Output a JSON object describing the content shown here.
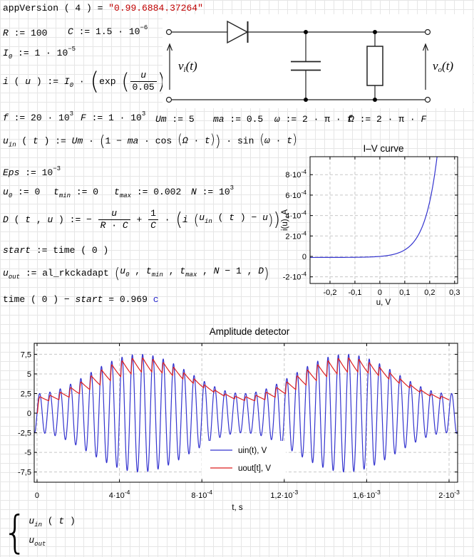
{
  "formulas": {
    "appversion": [
      [
        "t",
        "appVersion"
      ],
      [
        "o",
        " ( "
      ],
      [
        "t",
        "4"
      ],
      [
        "o",
        " ) = "
      ],
      [
        "s",
        "\"0.99.6884.37264\""
      ]
    ],
    "def_R": [
      [
        "v",
        "R"
      ],
      [
        "o",
        " := "
      ],
      [
        "t",
        "100"
      ]
    ],
    "def_C": [
      [
        "v",
        "C"
      ],
      [
        "o",
        " := "
      ],
      [
        "t",
        "1.5"
      ],
      [
        "o",
        " · "
      ],
      [
        "t",
        "10"
      ],
      [
        "sup",
        "−6"
      ]
    ],
    "def_I0": [
      [
        "v",
        "I"
      ],
      [
        "sub",
        "0"
      ],
      [
        "o",
        " := "
      ],
      [
        "t",
        "1"
      ],
      [
        "o",
        " · "
      ],
      [
        "t",
        "10"
      ],
      [
        "sup",
        "−5"
      ]
    ],
    "def_i": [
      [
        "v",
        "i"
      ],
      [
        "o",
        " ( "
      ],
      [
        "v",
        "u"
      ],
      [
        "o",
        " ) := "
      ],
      [
        "v",
        "I"
      ],
      [
        "sub",
        "0"
      ],
      [
        "o",
        " · "
      ],
      [
        "big",
        [
          [
            "t",
            "exp"
          ],
          [
            "o",
            " "
          ],
          [
            "big",
            [
              [
                "frac",
                [
                  [
                    "v",
                    "u"
                  ]
                ],
                [
                  [
                    "t",
                    "0.05"
                  ]
                ]
              ]
            ],
            2.2
          ],
          [
            "o",
            " − "
          ],
          [
            "t",
            "1"
          ]
        ],
        2.5
      ]
    ],
    "def_f": [
      [
        "v",
        "f"
      ],
      [
        "o",
        " := "
      ],
      [
        "t",
        "20"
      ],
      [
        "o",
        " · "
      ],
      [
        "t",
        "10"
      ],
      [
        "sup",
        "3"
      ]
    ],
    "def_F": [
      [
        "v",
        "F"
      ],
      [
        "o",
        " := "
      ],
      [
        "t",
        "1"
      ],
      [
        "o",
        " · "
      ],
      [
        "t",
        "10"
      ],
      [
        "sup",
        "3"
      ]
    ],
    "def_Um": [
      [
        "v",
        "Um"
      ],
      [
        "o",
        " := "
      ],
      [
        "t",
        "5"
      ]
    ],
    "def_ma": [
      [
        "v",
        "ma"
      ],
      [
        "o",
        " := "
      ],
      [
        "t",
        "0.5"
      ]
    ],
    "def_w": [
      [
        "v",
        "ω"
      ],
      [
        "o",
        " := "
      ],
      [
        "t",
        "2"
      ],
      [
        "o",
        " · "
      ],
      [
        "t",
        "π"
      ],
      [
        "o",
        " · "
      ],
      [
        "v",
        "f"
      ]
    ],
    "def_W": [
      [
        "v",
        "Ω"
      ],
      [
        "o",
        " := "
      ],
      [
        "t",
        "2"
      ],
      [
        "o",
        " · "
      ],
      [
        "t",
        "π"
      ],
      [
        "o",
        " · "
      ],
      [
        "v",
        "F"
      ]
    ],
    "def_uin": [
      [
        "v",
        "u"
      ],
      [
        "sub",
        "in"
      ],
      [
        "o",
        " ( "
      ],
      [
        "v",
        "t"
      ],
      [
        "o",
        " ) := "
      ],
      [
        "v",
        "Um"
      ],
      [
        "o",
        " · "
      ],
      [
        "big",
        [
          [
            "t",
            "1"
          ],
          [
            "o",
            " − "
          ],
          [
            "v",
            "ma"
          ],
          [
            "o",
            " · "
          ],
          [
            "t",
            "cos"
          ],
          [
            "o",
            " "
          ],
          [
            "big",
            [
              [
                "v",
                "Ω"
              ],
              [
                "o",
                " · "
              ],
              [
                "v",
                "t"
              ]
            ],
            1.35
          ]
        ],
        1.55
      ],
      [
        "o",
        " · "
      ],
      [
        "t",
        "sin"
      ],
      [
        "o",
        " "
      ],
      [
        "big",
        [
          [
            "v",
            "ω"
          ],
          [
            "o",
            " · "
          ],
          [
            "v",
            "t"
          ]
        ],
        1.35
      ]
    ],
    "def_Eps": [
      [
        "v",
        "Eps"
      ],
      [
        "o",
        " := "
      ],
      [
        "t",
        "10"
      ],
      [
        "sup",
        "−3"
      ]
    ],
    "def_u0": [
      [
        "v",
        "u"
      ],
      [
        "sub",
        "0"
      ],
      [
        "o",
        " := "
      ],
      [
        "t",
        "0"
      ]
    ],
    "def_tmin": [
      [
        "v",
        "t"
      ],
      [
        "sub",
        "min"
      ],
      [
        "o",
        " := "
      ],
      [
        "t",
        "0"
      ]
    ],
    "def_tmax": [
      [
        "v",
        "t"
      ],
      [
        "sub",
        "max"
      ],
      [
        "o",
        " := "
      ],
      [
        "t",
        "0.002"
      ]
    ],
    "def_N": [
      [
        "v",
        "N"
      ],
      [
        "o",
        " := "
      ],
      [
        "t",
        "10"
      ],
      [
        "sup",
        "3"
      ]
    ],
    "def_D": [
      [
        "v",
        "D"
      ],
      [
        "o",
        " ( "
      ],
      [
        "v",
        "t"
      ],
      [
        "o",
        " , "
      ],
      [
        "v",
        "u"
      ],
      [
        "o",
        " ) := − "
      ],
      [
        "frac",
        [
          [
            "v",
            "u"
          ]
        ],
        [
          [
            "v",
            "R"
          ],
          [
            "o",
            " · "
          ],
          [
            "v",
            "C"
          ]
        ]
      ],
      [
        "o",
        " + "
      ],
      [
        "frac",
        [
          [
            "t",
            "1"
          ]
        ],
        [
          [
            "v",
            "C"
          ]
        ]
      ],
      [
        "o",
        " · "
      ],
      [
        "big",
        [
          [
            "v",
            "i"
          ],
          [
            "o",
            " "
          ],
          [
            "big",
            [
              [
                "v",
                "u"
              ],
              [
                "sub",
                "in"
              ],
              [
                "o",
                " ( "
              ],
              [
                "v",
                "t"
              ],
              [
                "o",
                " ) − "
              ],
              [
                "v",
                "u"
              ]
            ],
            1.5
          ]
        ],
        1.9
      ]
    ],
    "def_start": [
      [
        "v",
        "start"
      ],
      [
        "o",
        " := "
      ],
      [
        "t",
        "time"
      ],
      [
        "o",
        " ( "
      ],
      [
        "t",
        "0"
      ],
      [
        "o",
        " )"
      ]
    ],
    "def_uout": [
      [
        "v",
        "u"
      ],
      [
        "sub",
        "out"
      ],
      [
        "o",
        " := "
      ],
      [
        "t",
        "al_rkckadapt"
      ],
      [
        "o",
        " "
      ],
      [
        "big",
        [
          [
            "v",
            "u"
          ],
          [
            "sub",
            "0"
          ],
          [
            "o",
            " , "
          ],
          [
            "v",
            "t"
          ],
          [
            "sub",
            "min"
          ],
          [
            "o",
            " , "
          ],
          [
            "v",
            "t"
          ],
          [
            "sub",
            "max"
          ],
          [
            "o",
            " , "
          ],
          [
            "v",
            "N"
          ],
          [
            "o",
            " − "
          ],
          [
            "t",
            "1"
          ],
          [
            "o",
            " , "
          ],
          [
            "v",
            "D"
          ]
        ],
        1.5
      ]
    ],
    "res_time": [
      [
        "t",
        "time"
      ],
      [
        "o",
        " ( "
      ],
      [
        "t",
        "0"
      ],
      [
        "o",
        " ) − "
      ],
      [
        "v",
        "start"
      ],
      [
        "o",
        " = "
      ],
      [
        "t",
        "0.969"
      ],
      [
        "u",
        " c"
      ]
    ],
    "sys_line1": [
      [
        "v",
        "u"
      ],
      [
        "sub",
        "in"
      ],
      [
        "o",
        " ( "
      ],
      [
        "v",
        "t"
      ],
      [
        "o",
        " )"
      ]
    ],
    "sys_line2": [
      [
        "v",
        "u"
      ],
      [
        "sub",
        "out"
      ]
    ]
  },
  "circuit": {
    "vi": {
      "base": "v",
      "sub": "i",
      "rest": "(t)"
    },
    "vo": {
      "base": "v",
      "sub": "o",
      "rest": "(t)"
    }
  },
  "chart_data": [
    {
      "id": "iv",
      "type": "line",
      "title": "I–V curve",
      "xlabel": "u, V",
      "ylabel": "i(u), A",
      "xlim": [
        -0.28,
        0.312
      ],
      "ylim": [
        -0.000265,
        0.000976
      ],
      "grid": true,
      "xticks": {
        "values": [
          -0.2,
          -0.1,
          0,
          0.1,
          0.2,
          0.3
        ],
        "labels": [
          "-0,2",
          "-0,1",
          "0",
          "0,1",
          "0,2",
          "0,3"
        ]
      },
      "yticks": {
        "values": [
          -0.0002,
          0,
          0.0002,
          0.0004,
          0.0006,
          0.0008
        ],
        "labels": [
          "-2·10^-4",
          "0",
          "2·10^-4",
          "4·10^-4",
          "6·10^-4",
          "8·10^-4"
        ]
      },
      "series": [
        {
          "name": "i(u)",
          "color": "#3434cf",
          "formula": "i(u)=I0*(exp(u/Vt)-1)",
          "params": {
            "I0": 1e-05,
            "Vt": 0.05
          }
        }
      ]
    },
    {
      "id": "amp",
      "type": "line",
      "title": "Amplitude detector",
      "xlabel": "t, s",
      "ylabel": "",
      "xlim": [
        -1.38e-05,
        0.0020415
      ],
      "ylim": [
        -8.8,
        8.9
      ],
      "grid": true,
      "xticks": {
        "values": [
          0,
          0.0004,
          0.0008,
          0.0012,
          0.0016,
          0.002
        ],
        "labels": [
          "0",
          "4·10^-4",
          "8·10^-4",
          "1,2·10^-3",
          "1,6·10^-3",
          "2·10^-3"
        ]
      },
      "yticks": {
        "values": [
          7.5,
          5,
          2.5,
          0,
          -2.5,
          -5,
          -7.5
        ],
        "labels": [
          "7,5",
          "5",
          "2,5",
          "0",
          "-2,5",
          "-5",
          "-7,5"
        ]
      },
      "legend": {
        "entries": [
          {
            "label": "uin(t), V",
            "color": "#3434cf"
          },
          {
            "label": "uout[t], V",
            "color": "#dc1f1f"
          }
        ]
      },
      "series": [
        {
          "name": "uin(t), V",
          "color": "#3434cf",
          "formula": "uin(t)=Um*(1-ma*cos(2*pi*F*t))*sin(2*pi*f*t)",
          "params": {
            "Um": 5,
            "ma": 0.5,
            "f": 20000,
            "F": 1000
          }
        },
        {
          "name": "uout[t], V",
          "color": "#dc1f1f",
          "formula": "du/dt=-u/(R*C)+(1/C)*I0*(exp((uin(t)-u)/Vt)-1)",
          "params": {
            "R": 100,
            "C": 1.5e-06,
            "I0": 1e-05,
            "Vt": 0.05,
            "u0": 0,
            "tmin": 0,
            "tmax": 0.002
          }
        }
      ]
    }
  ]
}
